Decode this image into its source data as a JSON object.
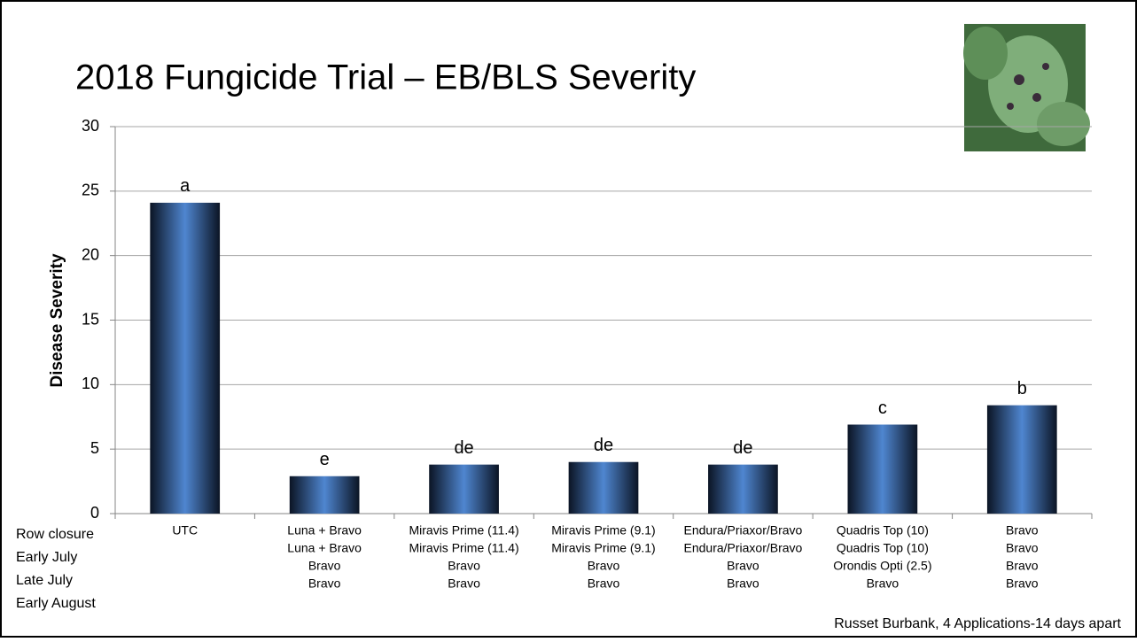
{
  "chart_data": {
    "type": "bar",
    "title": "2018 Fungicide Trial – EB/BLS Severity",
    "y_label": "Disease Severity",
    "categories": [
      [
        "UTC"
      ],
      [
        "Luna + Bravo",
        "Luna + Bravo",
        "Bravo",
        "Bravo"
      ],
      [
        "Miravis Prime (11.4)",
        "Miravis Prime (11.4)",
        "Bravo",
        "Bravo"
      ],
      [
        "Miravis Prime (9.1)",
        "Miravis Prime (9.1)",
        "Bravo",
        "Bravo"
      ],
      [
        "Endura/Priaxor/Bravo",
        "Endura/Priaxor/Bravo",
        "Bravo",
        "Bravo"
      ],
      [
        "Quadris Top (10)",
        "Quadris Top (10)",
        "Orondis Opti (2.5)",
        "Bravo"
      ],
      [
        "Bravo",
        "Bravo",
        "Bravo",
        "Bravo"
      ]
    ],
    "row_labels": [
      "Row closure",
      "Early July",
      "Late July",
      "Early August"
    ],
    "values": [
      24.1,
      2.9,
      3.8,
      4.0,
      3.8,
      6.9,
      8.4
    ],
    "letters": [
      "a",
      "e",
      "de",
      "de",
      "de",
      "c",
      "b"
    ],
    "color": "#4f86d0",
    "ylim": [
      0,
      30
    ],
    "yticks": [
      0,
      5,
      10,
      15,
      20,
      25,
      30
    ],
    "grid": true,
    "footnote": "Russet Burbank, 4 Applications-14 days apart"
  }
}
